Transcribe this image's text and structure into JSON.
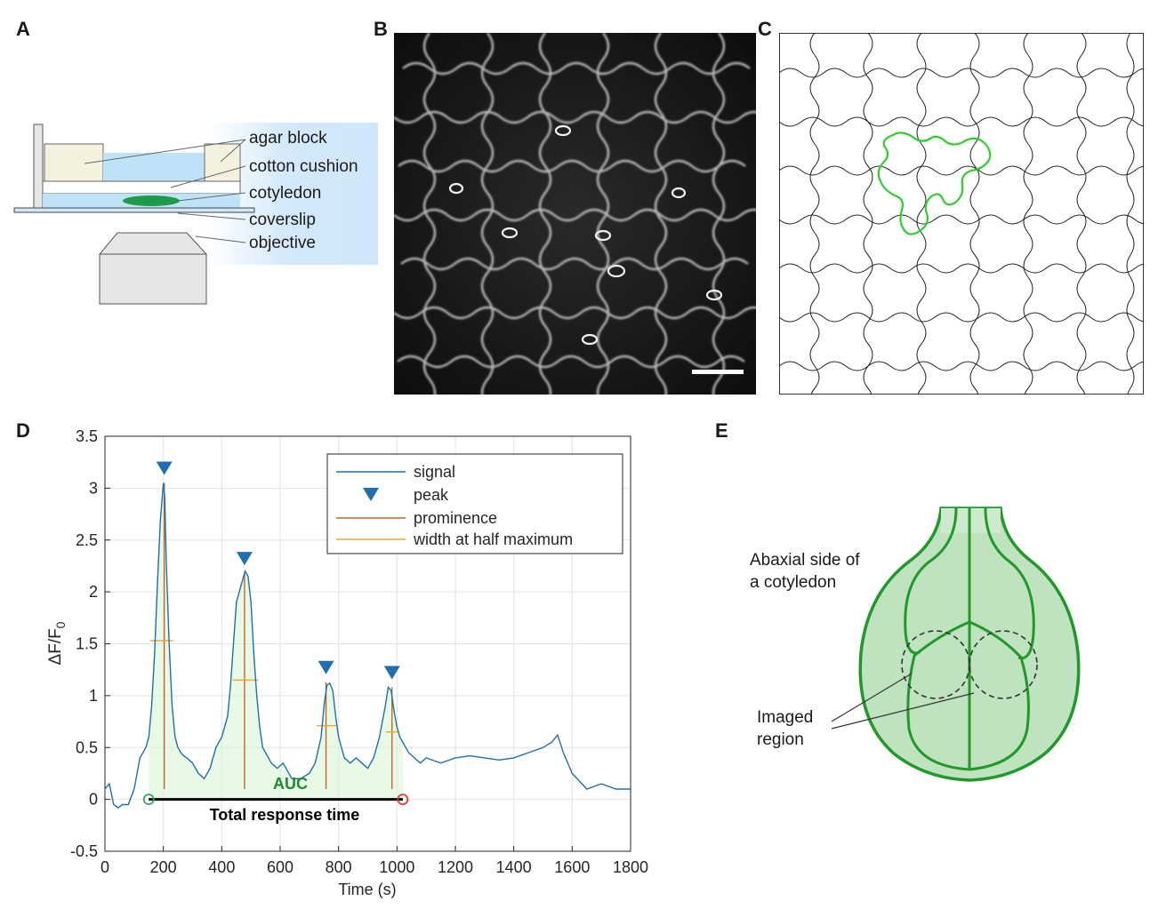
{
  "panels": {
    "a": "A",
    "b": "B",
    "c": "C",
    "d": "D",
    "e": "E"
  },
  "panel_a": {
    "labels": [
      "agar block",
      "cotton cushion",
      "cotyledon",
      "coverslip",
      "objective"
    ]
  },
  "panel_b": {
    "scale_bar": true
  },
  "panel_e": {
    "title_line1": "Abaxial side of",
    "title_line2": "a cotyledon",
    "imaged_line1": "Imaged",
    "imaged_line2": "region"
  },
  "chart_data": {
    "type": "line",
    "xlabel": "Time (s)",
    "ylabel_main": "ΔF/F",
    "ylabel_sub": "0",
    "xlim": [
      0,
      1800
    ],
    "ylim": [
      -0.5,
      3.5
    ],
    "xticks": [
      0,
      200,
      400,
      600,
      800,
      1000,
      1200,
      1400,
      1600,
      1800
    ],
    "yticks": [
      -0.5,
      0,
      0.5,
      1,
      1.5,
      2,
      2.5,
      3,
      3.5
    ],
    "grid": true,
    "legend": {
      "placement": "top-right",
      "entries": [
        "signal",
        "peak",
        "prominence",
        "width at half maximum"
      ],
      "colors": [
        "#1f6fb0",
        "#1f6fb0",
        "#c8642b",
        "#f0a630"
      ]
    },
    "series": [
      {
        "name": "signal",
        "x": [
          0,
          15,
          30,
          45,
          60,
          80,
          100,
          120,
          140,
          150,
          160,
          170,
          180,
          190,
          200,
          205,
          210,
          220,
          230,
          240,
          250,
          260,
          270,
          280,
          300,
          320,
          340,
          360,
          380,
          400,
          420,
          430,
          440,
          450,
          460,
          470,
          480,
          490,
          500,
          510,
          520,
          530,
          540,
          550,
          560,
          570,
          590,
          610,
          640,
          670,
          700,
          720,
          740,
          750,
          760,
          770,
          780,
          790,
          800,
          820,
          840,
          860,
          880,
          900,
          920,
          940,
          960,
          970,
          980,
          990,
          1000,
          1010,
          1020,
          1040,
          1060,
          1080,
          1100,
          1150,
          1200,
          1250,
          1300,
          1350,
          1400,
          1450,
          1500,
          1530,
          1550,
          1570,
          1600,
          1650,
          1700,
          1750,
          1800
        ],
        "y": [
          0.1,
          0.15,
          -0.05,
          -0.08,
          -0.05,
          -0.05,
          0.1,
          0.4,
          0.5,
          0.6,
          0.9,
          1.4,
          2.1,
          2.7,
          3.05,
          2.9,
          2.3,
          1.5,
          0.9,
          0.6,
          0.5,
          0.45,
          0.42,
          0.4,
          0.35,
          0.25,
          0.2,
          0.3,
          0.5,
          0.6,
          0.8,
          1.1,
          1.5,
          1.9,
          2.0,
          2.1,
          2.2,
          2.15,
          1.9,
          1.4,
          1.0,
          0.7,
          0.5,
          0.45,
          0.4,
          0.35,
          0.3,
          0.35,
          0.2,
          0.2,
          0.25,
          0.35,
          0.6,
          0.9,
          1.1,
          1.12,
          1.05,
          0.8,
          0.6,
          0.4,
          0.35,
          0.4,
          0.35,
          0.3,
          0.4,
          0.6,
          0.9,
          1.08,
          1.05,
          0.85,
          0.7,
          0.6,
          0.55,
          0.45,
          0.4,
          0.35,
          0.4,
          0.35,
          0.4,
          0.42,
          0.4,
          0.38,
          0.4,
          0.45,
          0.5,
          0.55,
          0.62,
          0.45,
          0.25,
          0.1,
          0.15,
          0.1,
          0.1
        ]
      }
    ],
    "peaks": [
      {
        "x": 203,
        "y": 3.05,
        "half_width_y": 1.53,
        "half_left": 155,
        "half_right": 233
      },
      {
        "x": 478,
        "y": 2.18,
        "half_width_y": 1.15,
        "half_left": 438,
        "half_right": 525
      },
      {
        "x": 757,
        "y": 1.13,
        "half_width_y": 0.71,
        "half_left": 725,
        "half_right": 798
      },
      {
        "x": 983,
        "y": 1.08,
        "half_width_y": 0.65,
        "half_left": 962,
        "half_right": 1005
      }
    ],
    "auc_label": "AUC",
    "response_start": 150,
    "response_end": 1020,
    "response_label": "Total response time"
  }
}
